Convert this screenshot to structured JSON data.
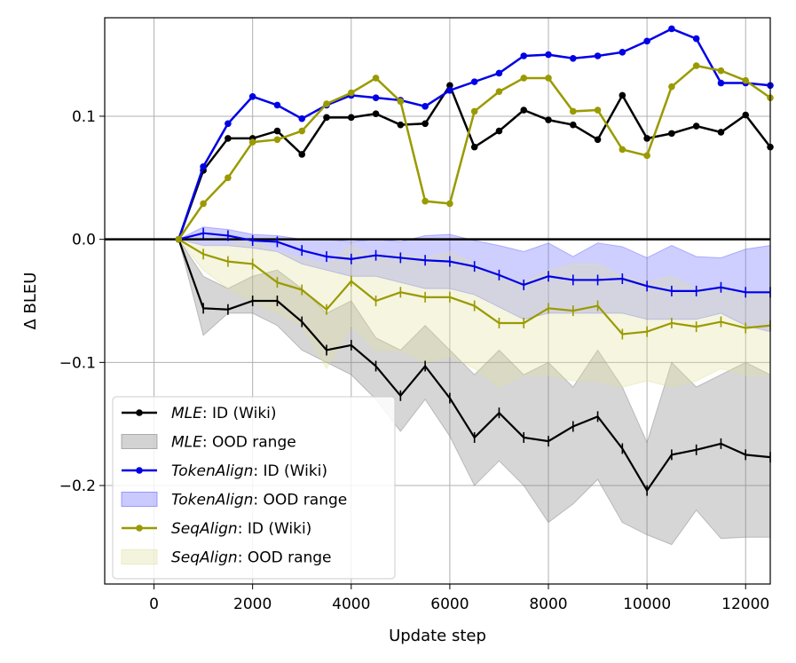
{
  "chart_data": {
    "type": "line",
    "title": "",
    "xlabel": "Update step",
    "ylabel": "Δ BLEU",
    "xlim": [
      -1000,
      12500
    ],
    "ylim": [
      -0.28,
      0.18
    ],
    "xticks": [
      0,
      2000,
      4000,
      6000,
      8000,
      10000,
      12000
    ],
    "xtick_labels": [
      "0",
      "2000",
      "4000",
      "6000",
      "8000",
      "10000",
      "12000"
    ],
    "yticks": [
      -0.2,
      -0.1,
      0.0,
      0.1
    ],
    "ytick_labels": [
      "−0.2",
      "−0.1",
      "0.0",
      "0.1"
    ],
    "grid": true,
    "legend_position": "bottom-left",
    "zero_line": 0.0,
    "x": [
      500,
      1000,
      1500,
      2000,
      2500,
      3000,
      3500,
      4000,
      4500,
      5000,
      5500,
      6000,
      6500,
      7000,
      7500,
      8000,
      8500,
      9000,
      9500,
      10000,
      10500,
      11000,
      11500,
      12000,
      12500
    ],
    "series": [
      {
        "key": "mle",
        "name_italic": "MLE",
        "color": "#000000",
        "band_color": "#808080",
        "id_label": ": ID (Wiki)",
        "ood_label": ": OOD range",
        "id_wiki": [
          0,
          0.056,
          0.082,
          0.082,
          0.088,
          0.069,
          0.099,
          0.099,
          0.102,
          0.093,
          0.094,
          0.125,
          0.075,
          0.088,
          0.105,
          0.097,
          0.093,
          0.081,
          0.117,
          0.082,
          0.086,
          0.092,
          0.087,
          0.101,
          0.075
        ],
        "ood_mean": [
          0,
          -0.056,
          -0.057,
          -0.05,
          -0.05,
          -0.067,
          -0.09,
          -0.086,
          -0.103,
          -0.127,
          -0.103,
          -0.129,
          -0.161,
          -0.141,
          -0.161,
          -0.164,
          -0.152,
          -0.144,
          -0.17,
          -0.204,
          -0.175,
          -0.171,
          -0.166,
          -0.175,
          -0.177
        ],
        "ood_upper": [
          0,
          -0.03,
          -0.04,
          -0.03,
          -0.025,
          -0.04,
          -0.06,
          -0.05,
          -0.08,
          -0.09,
          -0.07,
          -0.09,
          -0.11,
          -0.09,
          -0.11,
          -0.1,
          -0.12,
          -0.09,
          -0.12,
          -0.165,
          -0.1,
          -0.12,
          -0.11,
          -0.1,
          -0.11
        ],
        "ood_lower": [
          0,
          -0.078,
          -0.06,
          -0.06,
          -0.07,
          -0.09,
          -0.1,
          -0.11,
          -0.13,
          -0.156,
          -0.13,
          -0.16,
          -0.2,
          -0.18,
          -0.2,
          -0.23,
          -0.215,
          -0.195,
          -0.23,
          -0.24,
          -0.248,
          -0.22,
          -0.243,
          -0.242,
          -0.242
        ]
      },
      {
        "key": "tokenalign",
        "name_italic": "TokenAlign",
        "color": "#0000e6",
        "band_color": "#6666ff",
        "id_label": ": ID (Wiki)",
        "ood_label": ": OOD range",
        "id_wiki": [
          0,
          0.059,
          0.094,
          0.116,
          0.109,
          0.098,
          0.109,
          0.117,
          0.115,
          0.113,
          0.108,
          0.121,
          0.128,
          0.135,
          0.149,
          0.15,
          0.147,
          0.149,
          0.152,
          0.161,
          0.171,
          0.163,
          0.127,
          0.127,
          0.125
        ],
        "ood_mean": [
          0,
          0.005,
          0.003,
          -0.001,
          -0.002,
          -0.009,
          -0.014,
          -0.016,
          -0.013,
          -0.015,
          -0.017,
          -0.018,
          -0.022,
          -0.029,
          -0.037,
          -0.03,
          -0.033,
          -0.033,
          -0.032,
          -0.038,
          -0.042,
          -0.042,
          -0.039,
          -0.043,
          -0.043
        ],
        "ood_upper": [
          0,
          0.01,
          0.008,
          0.004,
          0.003,
          0.0,
          0.0,
          -0.002,
          0.0,
          -0.002,
          0.003,
          0.004,
          -0.001,
          -0.005,
          -0.01,
          -0.003,
          -0.014,
          -0.003,
          -0.006,
          -0.015,
          -0.005,
          -0.014,
          -0.015,
          -0.008,
          -0.005
        ],
        "ood_lower": [
          0,
          -0.005,
          -0.005,
          -0.007,
          -0.01,
          -0.02,
          -0.025,
          -0.03,
          -0.03,
          -0.035,
          -0.04,
          -0.04,
          -0.045,
          -0.055,
          -0.065,
          -0.06,
          -0.06,
          -0.06,
          -0.06,
          -0.065,
          -0.065,
          -0.065,
          -0.06,
          -0.07,
          -0.075
        ]
      },
      {
        "key": "seqalign",
        "name_italic": "SeqAlign",
        "color": "#9a9a00",
        "band_color": "#e0e0a0",
        "id_label": ": ID (Wiki)",
        "ood_label": ": OOD range",
        "id_wiki": [
          0,
          0.029,
          0.05,
          0.079,
          0.081,
          0.088,
          0.11,
          0.119,
          0.131,
          0.112,
          0.031,
          0.029,
          0.104,
          0.12,
          0.131,
          0.131,
          0.104,
          0.105,
          0.073,
          0.068,
          0.124,
          0.141,
          0.137,
          0.129,
          0.115
        ],
        "ood_mean": [
          0,
          -0.012,
          -0.018,
          -0.02,
          -0.035,
          -0.041,
          -0.057,
          -0.034,
          -0.05,
          -0.043,
          -0.047,
          -0.047,
          -0.054,
          -0.068,
          -0.068,
          -0.056,
          -0.058,
          -0.054,
          -0.077,
          -0.075,
          -0.068,
          -0.071,
          -0.067,
          -0.072,
          -0.07
        ],
        "ood_upper": [
          0,
          -0.005,
          -0.005,
          0.0,
          -0.01,
          -0.015,
          -0.02,
          -0.005,
          -0.015,
          -0.012,
          -0.015,
          -0.01,
          -0.02,
          -0.03,
          -0.035,
          -0.025,
          -0.02,
          -0.02,
          -0.03,
          -0.035,
          -0.03,
          -0.04,
          -0.04,
          -0.045,
          -0.045
        ],
        "ood_lower": [
          0,
          -0.025,
          -0.04,
          -0.05,
          -0.06,
          -0.07,
          -0.105,
          -0.07,
          -0.09,
          -0.09,
          -0.1,
          -0.095,
          -0.105,
          -0.12,
          -0.11,
          -0.11,
          -0.115,
          -0.115,
          -0.12,
          -0.115,
          -0.12,
          -0.115,
          -0.105,
          -0.11,
          -0.11
        ]
      }
    ]
  }
}
